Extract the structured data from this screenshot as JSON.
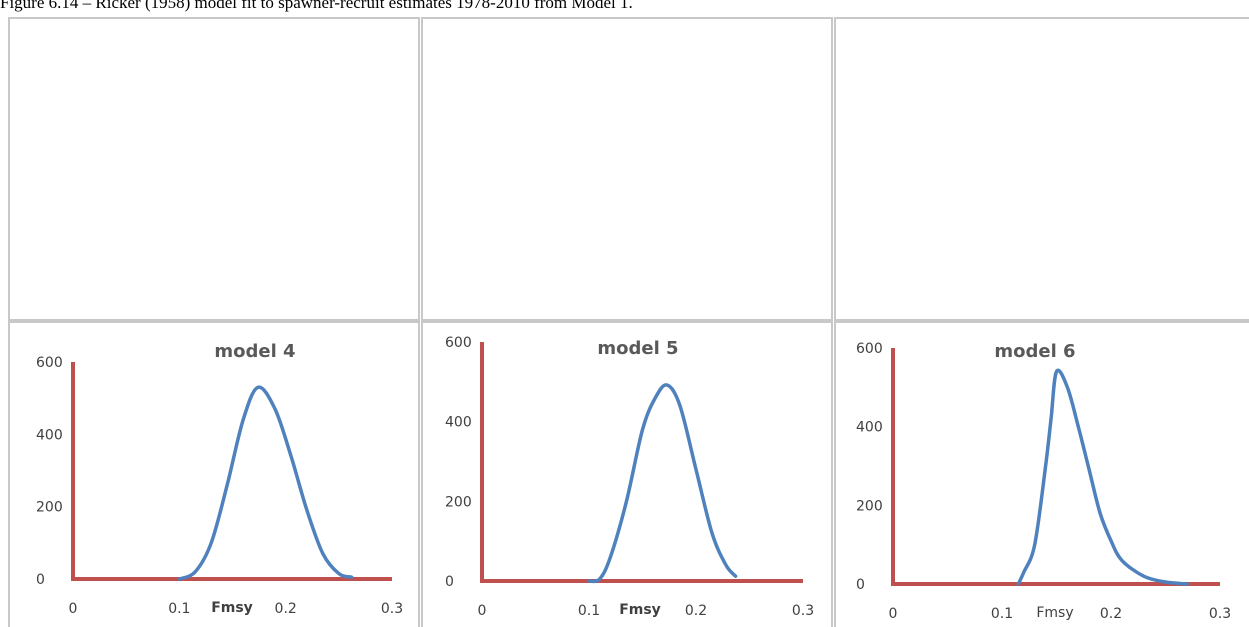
{
  "caption": "Figure 6.14 – Ricker (1958) model fit to spawner-recruit estimates 1978-2010 from Model 1.",
  "chart_data": [
    {
      "type": "line",
      "title": "model 4",
      "x_label": "Fmsy",
      "color": "#4f81bd",
      "axis_color": "#c0504d",
      "x": [
        0.1,
        0.115,
        0.13,
        0.145,
        0.16,
        0.174,
        0.19,
        0.205,
        0.22,
        0.235,
        0.25,
        0.262
      ],
      "values": [
        0,
        20,
        100,
        260,
        440,
        530,
        470,
        340,
        190,
        70,
        15,
        5
      ],
      "xlim": [
        0,
        0.3
      ],
      "ylim": [
        0,
        600
      ],
      "xticks": [
        0,
        0.1,
        0.2,
        0.3
      ],
      "yticks": [
        0,
        200,
        400,
        600
      ]
    },
    {
      "type": "line",
      "title": "model 5",
      "x_label": "Fmsy",
      "color": "#4f81bd",
      "axis_color": "#c0504d",
      "x": [
        0.1,
        0.11,
        0.12,
        0.135,
        0.15,
        0.162,
        0.173,
        0.185,
        0.2,
        0.215,
        0.228,
        0.237
      ],
      "values": [
        0,
        5,
        60,
        200,
        380,
        460,
        492,
        440,
        280,
        120,
        40,
        12
      ],
      "xlim": [
        0,
        0.3
      ],
      "ylim": [
        0,
        600
      ],
      "xticks": [
        0,
        0.1,
        0.2,
        0.3
      ],
      "yticks": [
        0,
        200,
        400,
        600
      ]
    },
    {
      "type": "line",
      "title": "model 6",
      "x_label": "Fmsy",
      "color": "#4f81bd",
      "axis_color": "#c0504d",
      "x": [
        0.115,
        0.12,
        0.13,
        0.14,
        0.145,
        0.15,
        0.16,
        0.17,
        0.18,
        0.19,
        0.2,
        0.21,
        0.23,
        0.25,
        0.27
      ],
      "values": [
        0,
        30,
        100,
        300,
        420,
        540,
        500,
        400,
        290,
        180,
        110,
        60,
        20,
        5,
        0
      ],
      "xlim": [
        0,
        0.3
      ],
      "ylim": [
        0,
        600
      ],
      "xticks": [
        0,
        0.1,
        0.2,
        0.3
      ],
      "yticks": [
        0,
        200,
        400,
        600
      ]
    }
  ]
}
